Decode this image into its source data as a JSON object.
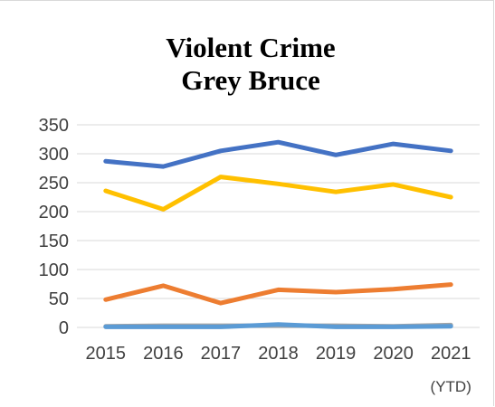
{
  "chart_data": {
    "type": "line",
    "title": [
      "Violent Crime",
      "Grey Bruce"
    ],
    "categories": [
      "2015",
      "2016",
      "2017",
      "2018",
      "2019",
      "2020",
      "2021"
    ],
    "category_sublabels": [
      "",
      "",
      "",
      "",
      "",
      "",
      "(YTD)"
    ],
    "ylim": [
      0,
      350
    ],
    "yticks": [
      0,
      50,
      100,
      150,
      200,
      250,
      300,
      350
    ],
    "grid": true,
    "legend": "none",
    "series": [
      {
        "color": "#4472c4",
        "values": [
          287,
          278,
          305,
          320,
          298,
          317,
          305
        ]
      },
      {
        "color": "#ffc000",
        "values": [
          236,
          204,
          260,
          248,
          234,
          247,
          225
        ]
      },
      {
        "color": "#ed7d31",
        "values": [
          48,
          72,
          42,
          65,
          61,
          66,
          74
        ]
      },
      {
        "color": "#a5a5a5",
        "values": [
          2,
          3,
          3,
          3,
          3,
          2,
          4
        ]
      },
      {
        "color": "#5b9bd5",
        "values": [
          1,
          1,
          1,
          5,
          1,
          1,
          2
        ]
      }
    ]
  }
}
